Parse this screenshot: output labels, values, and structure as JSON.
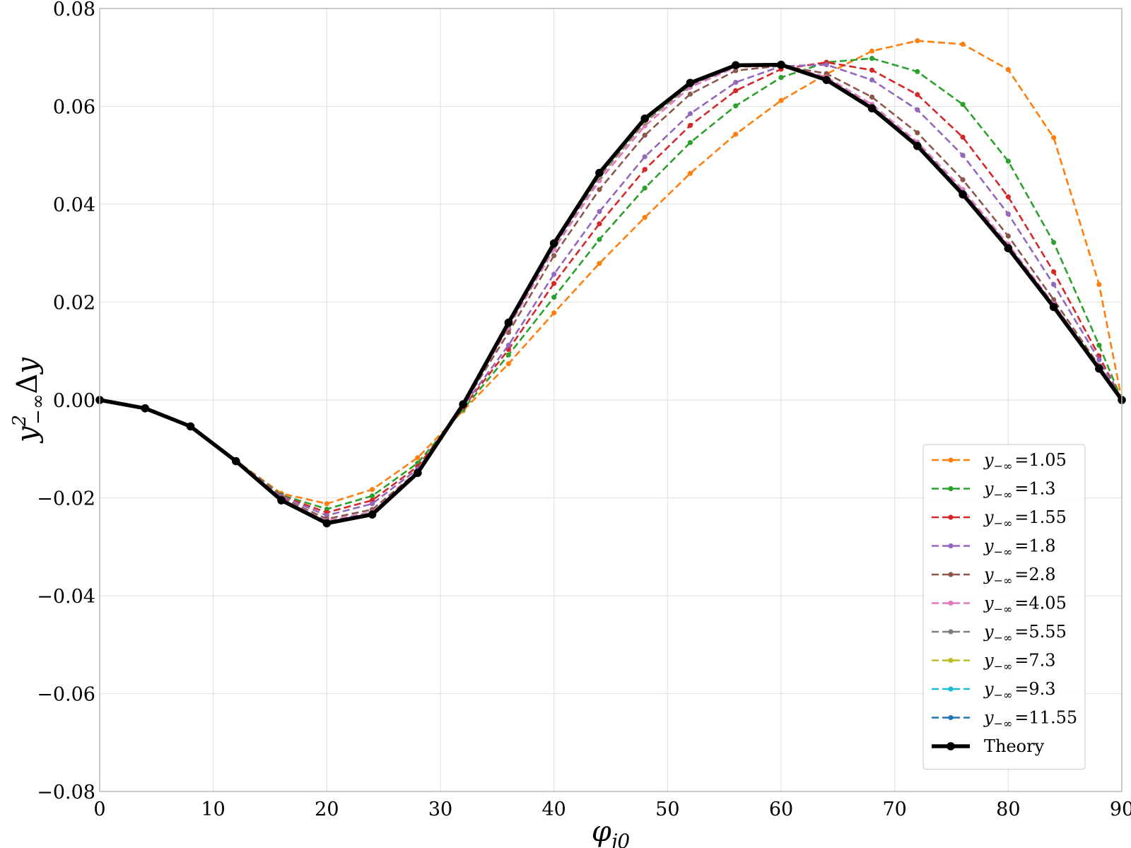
{
  "chart_data": {
    "type": "line",
    "title": "",
    "xlabel": "φ_j0",
    "ylabel": "y²_−∞ Δy",
    "xlim": [
      0,
      90
    ],
    "ylim": [
      -0.08,
      0.08
    ],
    "x_ticks": [
      0,
      10,
      20,
      30,
      40,
      50,
      60,
      70,
      80,
      90
    ],
    "y_ticks": [
      -0.08,
      -0.06,
      -0.04,
      -0.02,
      0.0,
      0.02,
      0.04,
      0.06,
      0.08
    ],
    "x_tick_labels": [
      "0",
      "10",
      "20",
      "30",
      "40",
      "50",
      "60",
      "70",
      "80",
      "90"
    ],
    "y_tick_labels": [
      "−0.08",
      "−0.06",
      "−0.04",
      "−0.02",
      "0.00",
      "0.02",
      "0.04",
      "0.06",
      "0.08"
    ],
    "grid": true,
    "legend_position": "bottom-right",
    "x": [
      0,
      4,
      8,
      12,
      16,
      20,
      24,
      28,
      32,
      36,
      40,
      44,
      48,
      52,
      56,
      60,
      64,
      68,
      72,
      76,
      80,
      84,
      88,
      90
    ],
    "series": [
      {
        "name": "y_{−∞} =1.05",
        "legend_prefix": "y",
        "legend_sub": "−∞",
        "legend_value": "=1.05",
        "color": "#ff7f0e",
        "style": "dashed",
        "values": [
          0.0,
          -0.0017,
          -0.0053,
          -0.0124,
          -0.0191,
          -0.0212,
          -0.0183,
          -0.0118,
          -0.0022,
          0.0074,
          0.0178,
          0.0279,
          0.0373,
          0.0463,
          0.0543,
          0.0612,
          0.0666,
          0.0713,
          0.0734,
          0.0727,
          0.0675,
          0.0536,
          0.0236,
          0.0
        ]
      },
      {
        "name": "y_{−∞} =1.3",
        "legend_prefix": "y",
        "legend_sub": "−∞",
        "legend_value": "=1.3",
        "color": "#2ca02c",
        "style": "dashed",
        "values": [
          0.0,
          -0.0017,
          -0.0053,
          -0.0124,
          -0.0194,
          -0.0223,
          -0.0196,
          -0.0129,
          -0.0019,
          0.0092,
          0.021,
          0.0328,
          0.0433,
          0.0526,
          0.0601,
          0.0659,
          0.069,
          0.0698,
          0.0671,
          0.0604,
          0.0488,
          0.0322,
          0.0112,
          0.0
        ]
      },
      {
        "name": "y_{−∞} =1.55",
        "legend_prefix": "y",
        "legend_sub": "−∞",
        "legend_value": "=1.55",
        "color": "#d62728",
        "style": "dashed",
        "values": [
          0.0,
          -0.0017,
          -0.0053,
          -0.0124,
          -0.0196,
          -0.023,
          -0.0205,
          -0.0136,
          -0.0015,
          0.0103,
          0.0238,
          0.036,
          0.0471,
          0.0561,
          0.0632,
          0.0676,
          0.069,
          0.0674,
          0.0624,
          0.0537,
          0.0415,
          0.0262,
          0.009,
          0.0
        ]
      },
      {
        "name": "y_{−∞} =1.8",
        "legend_prefix": "y",
        "legend_sub": "−∞",
        "legend_value": "=1.8",
        "color": "#9467bd",
        "style": "dashed",
        "values": [
          0.0,
          -0.0017,
          -0.0053,
          -0.0124,
          -0.0197,
          -0.0236,
          -0.0212,
          -0.0141,
          -0.0013,
          0.0112,
          0.0257,
          0.0385,
          0.0497,
          0.0585,
          0.0649,
          0.0682,
          0.0685,
          0.0654,
          0.0593,
          0.05,
          0.038,
          0.0236,
          0.0082,
          0.0
        ]
      },
      {
        "name": "y_{−∞} =2.8",
        "legend_prefix": "y",
        "legend_sub": "−∞",
        "legend_value": "=2.8",
        "color": "#8c564b",
        "style": "dashed",
        "values": [
          0.0,
          -0.0017,
          -0.0053,
          -0.0124,
          -0.02,
          -0.0243,
          -0.0224,
          -0.0146,
          -0.0011,
          0.0138,
          0.0295,
          0.043,
          0.0541,
          0.0625,
          0.0673,
          0.0683,
          0.0667,
          0.0619,
          0.0546,
          0.045,
          0.0335,
          0.0205,
          0.007,
          0.0
        ]
      },
      {
        "name": "y_{−∞} =4.05",
        "legend_prefix": "y",
        "legend_sub": "−∞",
        "legend_value": "=4.05",
        "color": "#e377c2",
        "style": "dashed",
        "values": [
          0.0,
          -0.0017,
          -0.0053,
          -0.0124,
          -0.0202,
          -0.0247,
          -0.0229,
          -0.0148,
          -0.001,
          0.0148,
          0.0308,
          0.0448,
          0.056,
          0.0639,
          0.068,
          0.0684,
          0.066,
          0.0604,
          0.0527,
          0.043,
          0.0318,
          0.0196,
          0.0066,
          0.0
        ]
      },
      {
        "name": "y_{−∞} =5.55",
        "legend_prefix": "y",
        "legend_sub": "−∞",
        "legend_value": "=5.55",
        "color": "#7f7f7f",
        "style": "dashed",
        "values": [
          0.0,
          -0.0017,
          -0.0053,
          -0.0124,
          -0.0203,
          -0.0249,
          -0.0231,
          -0.0149,
          -0.001,
          0.0152,
          0.0314,
          0.0455,
          0.0567,
          0.0643,
          0.0682,
          0.0684,
          0.0657,
          0.06,
          0.0523,
          0.0425,
          0.0314,
          0.0193,
          0.0065,
          0.0
        ]
      },
      {
        "name": "y_{−∞} =7.3",
        "legend_prefix": "y",
        "legend_sub": "−∞",
        "legend_value": "=7.3",
        "color": "#bcbd22",
        "style": "dashed",
        "values": [
          0.0,
          -0.0017,
          -0.0053,
          -0.0124,
          -0.0204,
          -0.025,
          -0.0232,
          -0.0149,
          -0.001,
          0.0155,
          0.0317,
          0.0459,
          0.057,
          0.0645,
          0.0683,
          0.0684,
          0.0655,
          0.0598,
          0.0521,
          0.0423,
          0.0312,
          0.0192,
          0.0065,
          0.0
        ]
      },
      {
        "name": "y_{−∞} =9.3",
        "legend_prefix": "y",
        "legend_sub": "−∞",
        "legend_value": "=9.3",
        "color": "#17becf",
        "style": "dashed",
        "values": [
          0.0,
          -0.0017,
          -0.0053,
          -0.0124,
          -0.0204,
          -0.025,
          -0.0232,
          -0.0149,
          -0.001,
          0.0156,
          0.0318,
          0.0461,
          0.0572,
          0.0646,
          0.0683,
          0.0684,
          0.0654,
          0.0597,
          0.052,
          0.0422,
          0.0311,
          0.0191,
          0.0065,
          0.0
        ]
      },
      {
        "name": "y_{−∞} =11.55",
        "legend_prefix": "y",
        "legend_sub": "−∞",
        "legend_value": "=11.55",
        "color": "#1f77b4",
        "style": "dashed",
        "values": [
          0.0,
          -0.0017,
          -0.0053,
          -0.0124,
          -0.0204,
          -0.0251,
          -0.0233,
          -0.0149,
          -0.001,
          0.0157,
          0.0319,
          0.0462,
          0.0573,
          0.0647,
          0.0684,
          0.0684,
          0.0654,
          0.0597,
          0.052,
          0.0421,
          0.0311,
          0.0191,
          0.0064,
          0.0
        ]
      },
      {
        "name": "Theory",
        "legend_prefix": "Theory",
        "legend_sub": "",
        "legend_value": "",
        "color": "#000000",
        "style": "solid",
        "values": [
          0.0,
          -0.0017,
          -0.0054,
          -0.0125,
          -0.0205,
          -0.0252,
          -0.0234,
          -0.0149,
          -0.0009,
          0.0158,
          0.032,
          0.0464,
          0.0575,
          0.0648,
          0.0684,
          0.0685,
          0.0654,
          0.0596,
          0.0519,
          0.042,
          0.031,
          0.019,
          0.0064,
          0.0
        ]
      }
    ]
  }
}
